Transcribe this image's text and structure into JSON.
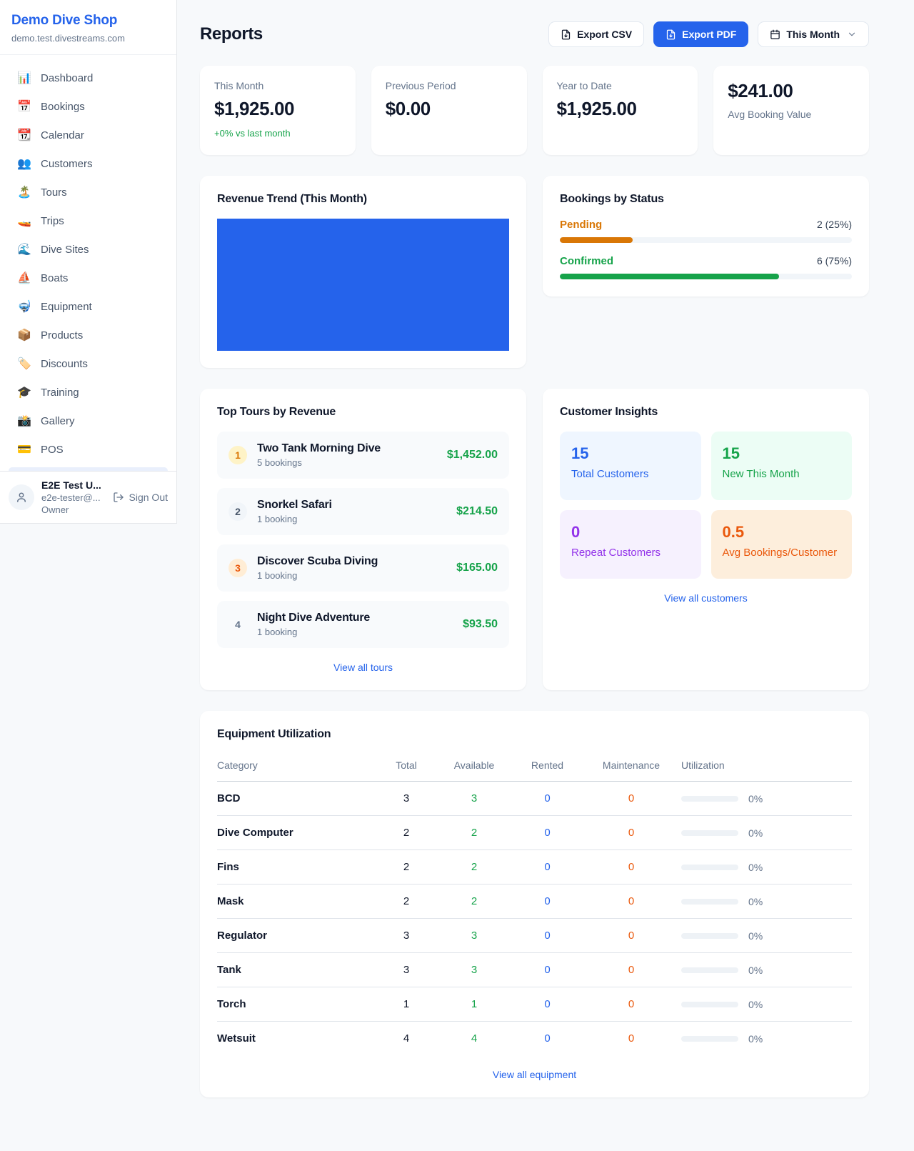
{
  "sidebar": {
    "brand": {
      "name": "Demo Dive Shop",
      "domain": "demo.test.divestreams.com"
    },
    "items": [
      {
        "key": "dashboard",
        "icon": "📊",
        "label": "Dashboard"
      },
      {
        "key": "bookings",
        "icon": "📅",
        "label": "Bookings"
      },
      {
        "key": "calendar",
        "icon": "📆",
        "label": "Calendar"
      },
      {
        "key": "customers",
        "icon": "👥",
        "label": "Customers"
      },
      {
        "key": "tours",
        "icon": "🏝️",
        "label": "Tours"
      },
      {
        "key": "trips",
        "icon": "🚤",
        "label": "Trips"
      },
      {
        "key": "dive-sites",
        "icon": "🌊",
        "label": "Dive Sites"
      },
      {
        "key": "boats",
        "icon": "⛵",
        "label": "Boats"
      },
      {
        "key": "equipment",
        "icon": "🤿",
        "label": "Equipment"
      },
      {
        "key": "products",
        "icon": "📦",
        "label": "Products"
      },
      {
        "key": "discounts",
        "icon": "🏷️",
        "label": "Discounts"
      },
      {
        "key": "training",
        "icon": "🎓",
        "label": "Training"
      },
      {
        "key": "gallery",
        "icon": "📸",
        "label": "Gallery"
      },
      {
        "key": "pos",
        "icon": "💳",
        "label": "POS"
      }
    ],
    "user": {
      "name": "E2E Test U...",
      "email": "e2e-tester@...",
      "role": "Owner",
      "sign_out_label": "Sign Out"
    }
  },
  "header": {
    "title": "Reports",
    "export_csv_label": "Export CSV",
    "export_pdf_label": "Export PDF",
    "period_label": "This Month"
  },
  "stats": {
    "cards": [
      {
        "label": "This Month",
        "value": "$1,925.00",
        "delta": "+0% vs last month"
      },
      {
        "label": "Previous Period",
        "value": "$0.00"
      },
      {
        "label": "Year to Date",
        "value": "$1,925.00"
      },
      {
        "label": "Avg Booking Value",
        "value": "$241.00"
      }
    ]
  },
  "revenue_trend": {
    "title": "Revenue Trend (This Month)",
    "bar_color": "#2563eb"
  },
  "chart_data": {
    "type": "bar",
    "title": "Revenue Trend (This Month)",
    "categories": [
      "This Month"
    ],
    "values": [
      1925.0
    ],
    "bar_color": "#2563eb",
    "note": "rendered as a single blue bar filling the entire plot area; no axes, gridlines or labels visible"
  },
  "bookings_by_status": {
    "title": "Bookings by Status",
    "rows": [
      {
        "label": "Pending",
        "count": 2,
        "pct": 25,
        "display": "2 (25%)",
        "color": "#d97706"
      },
      {
        "label": "Confirmed",
        "count": 6,
        "pct": 75,
        "display": "6 (75%)",
        "color": "#16a34a"
      }
    ]
  },
  "top_tours": {
    "title": "Top Tours by Revenue",
    "items": [
      {
        "rank": "1",
        "name": "Two Tank Morning Dive",
        "bookings": "5 bookings",
        "amount": "$1,452.00",
        "badge_bg": "#fef3c7",
        "badge_color": "#d97706"
      },
      {
        "rank": "2",
        "name": "Snorkel Safari",
        "bookings": "1 booking",
        "amount": "$214.50",
        "badge_bg": "#f1f5f9",
        "badge_color": "#475569"
      },
      {
        "rank": "3",
        "name": "Discover Scuba Diving",
        "bookings": "1 booking",
        "amount": "$165.00",
        "badge_bg": "#ffedd5",
        "badge_color": "#ea580c"
      },
      {
        "rank": "4",
        "name": "Night Dive Adventure",
        "bookings": "1 booking",
        "amount": "$93.50",
        "badge_bg": "transparent",
        "badge_color": "#64748b"
      }
    ],
    "view_all_label": "View all tours"
  },
  "customer_insights": {
    "title": "Customer Insights",
    "tiles": [
      {
        "value": "15",
        "label": "Total Customers",
        "bg": "#eff6ff",
        "color": "#2563eb"
      },
      {
        "value": "15",
        "label": "New This Month",
        "bg": "#ecfdf5",
        "color": "#16a34a"
      },
      {
        "value": "0",
        "label": "Repeat Customers",
        "bg": "#f6f1fe",
        "color": "#9333ea"
      },
      {
        "value": "0.5",
        "label": "Avg Bookings/Customer",
        "bg": "#fdeedc",
        "color": "#ea580c"
      }
    ],
    "view_all_label": "View all customers"
  },
  "equipment": {
    "title": "Equipment Utilization",
    "columns": [
      "Category",
      "Total",
      "Available",
      "Rented",
      "Maintenance",
      "Utilization"
    ],
    "rows": [
      {
        "category": "BCD",
        "total": "3",
        "available": "3",
        "rented": "0",
        "maintenance": "0",
        "utilization": "0%",
        "pct": 0
      },
      {
        "category": "Dive Computer",
        "total": "2",
        "available": "2",
        "rented": "0",
        "maintenance": "0",
        "utilization": "0%",
        "pct": 0
      },
      {
        "category": "Fins",
        "total": "2",
        "available": "2",
        "rented": "0",
        "maintenance": "0",
        "utilization": "0%",
        "pct": 0
      },
      {
        "category": "Mask",
        "total": "2",
        "available": "2",
        "rented": "0",
        "maintenance": "0",
        "utilization": "0%",
        "pct": 0
      },
      {
        "category": "Regulator",
        "total": "3",
        "available": "3",
        "rented": "0",
        "maintenance": "0",
        "utilization": "0%",
        "pct": 0
      },
      {
        "category": "Tank",
        "total": "3",
        "available": "3",
        "rented": "0",
        "maintenance": "0",
        "utilization": "0%",
        "pct": 0
      },
      {
        "category": "Torch",
        "total": "1",
        "available": "1",
        "rented": "0",
        "maintenance": "0",
        "utilization": "0%",
        "pct": 0
      },
      {
        "category": "Wetsuit",
        "total": "4",
        "available": "4",
        "rented": "0",
        "maintenance": "0",
        "utilization": "0%",
        "pct": 0
      }
    ],
    "view_all_label": "View all equipment"
  }
}
